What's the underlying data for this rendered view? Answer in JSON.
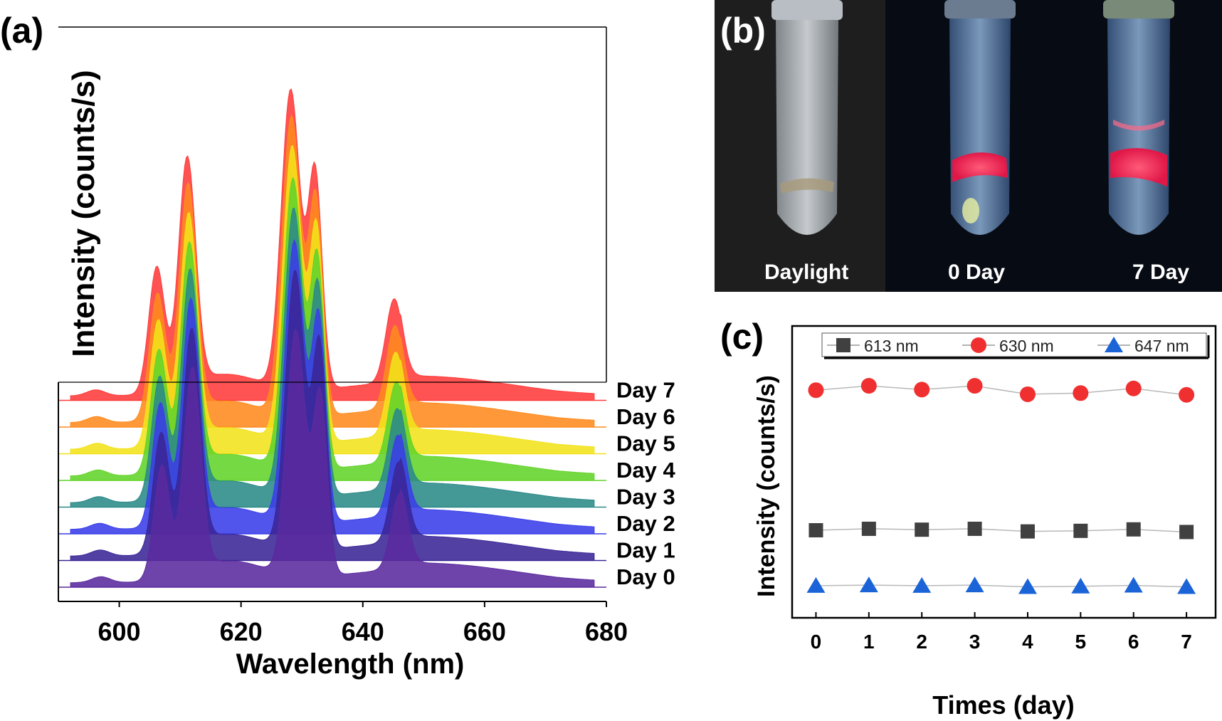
{
  "panels": {
    "a": {
      "label": "(a)"
    },
    "b": {
      "label": "(b)",
      "captions": [
        "Daylight",
        "0 Day",
        "7 Day"
      ]
    },
    "c": {
      "label": "(c)"
    }
  },
  "chart_data": [
    {
      "panel": "a",
      "type": "area",
      "xlabel": "Wavelength (nm)",
      "ylabel": "Intensity (counts/s)",
      "xlim": [
        590,
        680
      ],
      "xticks": [
        600,
        620,
        640,
        660,
        680
      ],
      "peaks_nm": [
        597,
        607,
        612,
        629,
        633,
        646
      ],
      "series": [
        {
          "name": "Day 0",
          "color": "#5a2a9e",
          "peak_heights": [
            0.02,
            0.38,
            0.68,
            0.82,
            0.6,
            0.25
          ]
        },
        {
          "name": "Day 1",
          "color": "#3b2696",
          "peak_heights": [
            0.02,
            0.4,
            0.72,
            0.93,
            0.68,
            0.27
          ]
        },
        {
          "name": "Day 2",
          "color": "#3a3ee8",
          "peak_heights": [
            0.02,
            0.41,
            0.73,
            0.94,
            0.68,
            0.27
          ]
        },
        {
          "name": "Day 3",
          "color": "#2a8a88",
          "peak_heights": [
            0.02,
            0.41,
            0.74,
            0.96,
            0.69,
            0.27
          ]
        },
        {
          "name": "Day 4",
          "color": "#62d42a",
          "peak_heights": [
            0.02,
            0.41,
            0.74,
            0.97,
            0.7,
            0.27
          ]
        },
        {
          "name": "Day 5",
          "color": "#f2e21a",
          "peak_heights": [
            0.02,
            0.42,
            0.75,
            0.99,
            0.71,
            0.28
          ]
        },
        {
          "name": "Day 6",
          "color": "#ff8a1e",
          "peak_heights": [
            0.02,
            0.42,
            0.76,
            1.0,
            0.72,
            0.28
          ]
        },
        {
          "name": "Day 7",
          "color": "#ff3a3a",
          "peak_heights": [
            0.02,
            0.42,
            0.76,
            1.0,
            0.72,
            0.28
          ]
        }
      ]
    },
    {
      "panel": "c",
      "type": "scatter",
      "xlabel": "Times (day)",
      "ylabel": "Intensity (counts/s)",
      "x": [
        0,
        1,
        2,
        3,
        4,
        5,
        6,
        7
      ],
      "xticks": [
        0,
        1,
        2,
        3,
        4,
        5,
        6,
        7
      ],
      "xlim": [
        -0.45,
        7.55
      ],
      "ylim": [
        0,
        1
      ],
      "legend_position": "top",
      "series": [
        {
          "name": "613 nm",
          "marker": "square",
          "color": "#404040",
          "values": [
            0.3,
            0.305,
            0.302,
            0.305,
            0.296,
            0.298,
            0.303,
            0.294
          ]
        },
        {
          "name": "630 nm",
          "marker": "circle",
          "color": "#f03030",
          "values": [
            0.78,
            0.795,
            0.782,
            0.795,
            0.766,
            0.77,
            0.786,
            0.764
          ]
        },
        {
          "name": "647 nm",
          "marker": "triangle",
          "color": "#1a64d8",
          "values": [
            0.11,
            0.112,
            0.11,
            0.112,
            0.106,
            0.108,
            0.111,
            0.106
          ]
        }
      ]
    }
  ]
}
